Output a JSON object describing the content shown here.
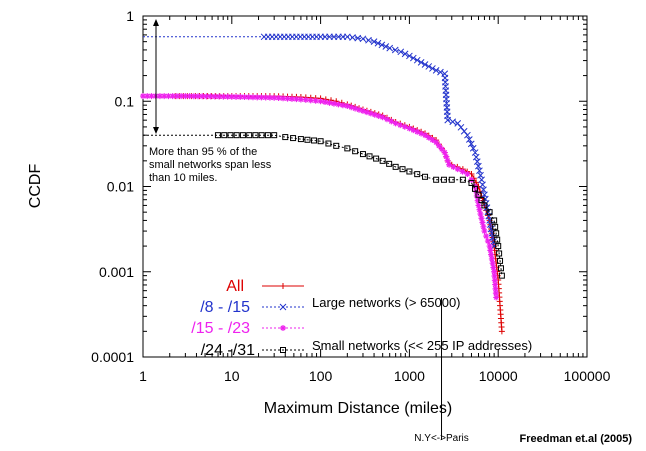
{
  "chart_data": {
    "type": "scatter",
    "ylabel": "CCDF",
    "xlabel": "Maximum Distance (miles)",
    "xscale": "log",
    "yscale": "log",
    "xlim": [
      1,
      100000
    ],
    "ylim": [
      0.0001,
      1
    ],
    "x_ticks": [
      "1",
      "10",
      "100",
      "1000",
      "10000",
      "100000"
    ],
    "y_ticks": [
      "1",
      "0.1",
      "0.01",
      "0.001",
      "0.0001"
    ],
    "grid": false,
    "legend_position": "bottom-center",
    "series": [
      {
        "name": "All",
        "color": "#dd0000",
        "marker": "plus",
        "points": [
          [
            1,
            0.115
          ],
          [
            10,
            0.115
          ],
          [
            30,
            0.115
          ],
          [
            60,
            0.112
          ],
          [
            100,
            0.108
          ],
          [
            150,
            0.1
          ],
          [
            200,
            0.092
          ],
          [
            300,
            0.08
          ],
          [
            500,
            0.068
          ],
          [
            700,
            0.057
          ],
          [
            1000,
            0.05
          ],
          [
            1500,
            0.042
          ],
          [
            2000,
            0.035
          ],
          [
            2500,
            0.025
          ],
          [
            2700,
            0.02
          ],
          [
            3000,
            0.018
          ],
          [
            4000,
            0.016
          ],
          [
            5000,
            0.014
          ],
          [
            6000,
            0.01
          ],
          [
            7000,
            0.006
          ],
          [
            8000,
            0.004
          ],
          [
            9000,
            0.002
          ],
          [
            10000,
            0.0008
          ],
          [
            11000,
            0.0002
          ]
        ]
      },
      {
        "name": "/8 - /15",
        "color": "#2233cc",
        "marker": "cross",
        "points": [
          [
            1,
            0.57
          ],
          [
            100,
            0.57
          ],
          [
            200,
            0.57
          ],
          [
            300,
            0.54
          ],
          [
            400,
            0.5
          ],
          [
            600,
            0.42
          ],
          [
            800,
            0.38
          ],
          [
            1000,
            0.34
          ],
          [
            1500,
            0.27
          ],
          [
            2000,
            0.23
          ],
          [
            2500,
            0.21
          ],
          [
            2700,
            0.06
          ],
          [
            3500,
            0.055
          ],
          [
            4500,
            0.04
          ],
          [
            5500,
            0.025
          ],
          [
            6500,
            0.012
          ],
          [
            7000,
            0.008
          ],
          [
            8000,
            0.004
          ],
          [
            9000,
            0.002
          ]
        ]
      },
      {
        "name": "/15 - /23",
        "color": "#ee22ee",
        "marker": "asterisk",
        "points": [
          [
            1,
            0.115
          ],
          [
            3,
            0.115
          ],
          [
            10,
            0.113
          ],
          [
            30,
            0.11
          ],
          [
            60,
            0.105
          ],
          [
            100,
            0.1
          ],
          [
            200,
            0.088
          ],
          [
            300,
            0.077
          ],
          [
            500,
            0.065
          ],
          [
            700,
            0.055
          ],
          [
            1000,
            0.048
          ],
          [
            1500,
            0.04
          ],
          [
            2000,
            0.033
          ],
          [
            2500,
            0.025
          ],
          [
            2800,
            0.018
          ],
          [
            3500,
            0.016
          ],
          [
            4500,
            0.014
          ],
          [
            5000,
            0.012
          ],
          [
            5500,
            0.01
          ],
          [
            6000,
            0.006
          ],
          [
            7000,
            0.003
          ],
          [
            8000,
            0.002
          ],
          [
            9000,
            0.001
          ],
          [
            9500,
            0.0005
          ]
        ]
      },
      {
        "name": "/24 -/31",
        "color": "#000000",
        "marker": "square",
        "points": [
          [
            1,
            0.04
          ],
          [
            30,
            0.04
          ],
          [
            40,
            0.038
          ],
          [
            60,
            0.036
          ],
          [
            100,
            0.034
          ],
          [
            150,
            0.03
          ],
          [
            200,
            0.028
          ],
          [
            300,
            0.024
          ],
          [
            500,
            0.02
          ],
          [
            700,
            0.017
          ],
          [
            1000,
            0.015
          ],
          [
            1500,
            0.013
          ],
          [
            2000,
            0.012
          ],
          [
            3000,
            0.012
          ],
          [
            4000,
            0.012
          ],
          [
            5000,
            0.011
          ],
          [
            6000,
            0.008
          ],
          [
            7000,
            0.006
          ],
          [
            8000,
            0.005
          ],
          [
            9000,
            0.004
          ],
          [
            10000,
            0.002
          ],
          [
            11000,
            0.0009
          ]
        ]
      }
    ]
  },
  "legend_descriptions": {
    "large": "Large networks (> 65000)",
    "small": "Small networks (<< 255 IP addresses)"
  },
  "annotation": {
    "lines": [
      "More than 95 % of the",
      "small networks span less",
      "than 10 miles."
    ]
  },
  "marker_label": {
    "text": "N.Y<->Paris",
    "x_value": 2300
  },
  "credit": "Freedman et.al (2005)"
}
